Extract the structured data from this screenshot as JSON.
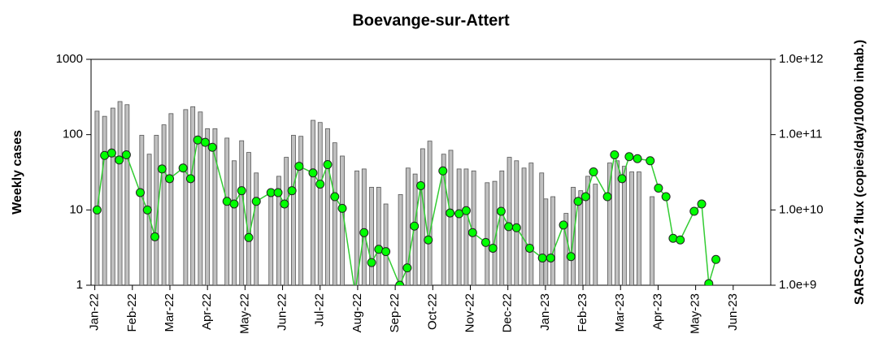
{
  "chart_data": {
    "type": "bar",
    "title": "Boevange-sur-Attert",
    "y_label": "Weekly cases",
    "y2_label": "SARS-CoV-2 flux (copies/day/10000 inhab.)",
    "log_y": true,
    "log_y2": true,
    "xlim": [
      -0.1,
      18
    ],
    "ylim": [
      1,
      1000
    ],
    "y2lim": [
      1000000000,
      1000000000000
    ],
    "xticks": [
      {
        "value": 0,
        "label": "Jan-22"
      },
      {
        "value": 1,
        "label": "Feb-22"
      },
      {
        "value": 2,
        "label": "Mar-22"
      },
      {
        "value": 3,
        "label": "Apr-22"
      },
      {
        "value": 4,
        "label": "May-22"
      },
      {
        "value": 5,
        "label": "Jun-22"
      },
      {
        "value": 6,
        "label": "Jul-22"
      },
      {
        "value": 7,
        "label": "Aug-22"
      },
      {
        "value": 8,
        "label": "Sep-22"
      },
      {
        "value": 9,
        "label": "Oct-22"
      },
      {
        "value": 10,
        "label": "Nov-22"
      },
      {
        "value": 11,
        "label": "Dec-22"
      },
      {
        "value": 12,
        "label": "Jan-23"
      },
      {
        "value": 13,
        "label": "Feb-23"
      },
      {
        "value": 14,
        "label": "Mar-23"
      },
      {
        "value": 15,
        "label": "Apr-23"
      },
      {
        "value": 16,
        "label": "May-23"
      },
      {
        "value": 17,
        "label": "Jun-23"
      }
    ],
    "yticks": [
      1,
      10,
      100,
      1000
    ],
    "y2ticks": [
      {
        "value": 1000000000,
        "label": "1.0e+9"
      },
      {
        "value": 10000000000,
        "label": "1.0e+10"
      },
      {
        "value": 100000000000,
        "label": "1.0e+11"
      },
      {
        "value": 1000000000000,
        "label": "1.0e+12"
      }
    ],
    "series": [
      {
        "type": "bar",
        "color": "#c0c0c0",
        "x": [
          0.06,
          0.26,
          0.48,
          0.67,
          0.86,
          1.25,
          1.45,
          1.64,
          1.84,
          2.03,
          2.42,
          2.61,
          2.81,
          3.0,
          3.2,
          3.52,
          3.71,
          3.91,
          4.1,
          4.3,
          4.69,
          4.9,
          5.1,
          5.29,
          5.49,
          5.81,
          6.0,
          6.2,
          6.39,
          6.59,
          6.98,
          7.17,
          7.37,
          7.56,
          7.75,
          8.14,
          8.34,
          8.53,
          8.73,
          8.92,
          9.29,
          9.48,
          9.7,
          9.89,
          10.09,
          10.45,
          10.65,
          10.84,
          11.04,
          11.23,
          11.43,
          11.62,
          11.9,
          12.01,
          12.2,
          12.55,
          12.74,
          12.94,
          13.13,
          13.33,
          13.71,
          13.91,
          14.1,
          14.3,
          14.49,
          14.84
        ],
        "values": [
          205,
          175,
          225,
          275,
          250,
          98,
          55,
          98,
          135,
          190,
          215,
          235,
          200,
          120,
          120,
          90,
          45,
          83,
          58,
          31,
          18,
          28,
          50,
          98,
          95,
          155,
          145,
          120,
          78,
          52,
          33,
          35,
          20,
          20,
          12,
          16,
          36,
          30,
          65,
          82,
          55,
          62,
          35,
          35,
          33,
          23,
          24,
          33,
          50,
          45,
          36,
          42,
          31,
          14,
          15,
          9,
          20,
          18,
          28,
          22,
          42,
          45,
          38,
          32,
          32,
          15
        ]
      },
      {
        "type": "line",
        "axis": "y2",
        "color": "#33cc33",
        "marker_color": "#00ff00",
        "x": [
          0.06,
          0.26,
          0.45,
          0.65,
          0.84,
          1.21,
          1.4,
          1.6,
          1.79,
          1.99,
          2.35,
          2.55,
          2.74,
          2.94,
          3.13,
          3.52,
          3.71,
          3.91,
          4.1,
          4.3,
          4.69,
          4.88,
          5.05,
          5.25,
          5.44,
          5.81,
          6.0,
          6.2,
          6.39,
          6.59,
          6.93,
          7.17,
          7.37,
          7.56,
          7.75,
          8.12,
          8.32,
          8.51,
          8.68,
          8.88,
          9.27,
          9.46,
          9.7,
          9.89,
          10.06,
          10.41,
          10.6,
          10.82,
          11.02,
          11.23,
          11.58,
          11.92,
          12.14,
          12.48,
          12.68,
          12.87,
          13.07,
          13.28,
          13.65,
          13.84,
          14.04,
          14.23,
          14.45,
          14.79,
          15.01,
          15.21,
          15.4,
          15.59,
          15.96,
          16.16,
          16.35,
          16.54
        ],
        "values": [
          10000000000,
          53000000000,
          57000000000,
          46000000000,
          54000000000,
          17000000000,
          10000000000,
          4400000000,
          35000000000,
          26000000000,
          36000000000,
          26000000000,
          85000000000,
          79000000000,
          68000000000,
          13000000000,
          12000000000,
          18000000000,
          4300000000,
          13000000000,
          17000000000,
          17000000000,
          12000000000,
          18000000000,
          38000000000,
          31000000000,
          22000000000,
          40000000000,
          15000000000,
          10500000000,
          800000000,
          5000000000,
          2000000000,
          3000000000,
          2800000000,
          1000000000,
          1700000000,
          6100000000,
          21000000000,
          4000000000,
          33000000000,
          9100000000,
          8900000000,
          9800000000,
          5000000000,
          3700000000,
          3100000000,
          9600000000,
          6000000000,
          5800000000,
          3100000000,
          2300000000,
          2300000000,
          6300000000,
          2400000000,
          13000000000,
          15000000000,
          32000000000,
          15000000000,
          54000000000,
          26000000000,
          51000000000,
          48000000000,
          45000000000,
          19500000000,
          15000000000,
          4200000000,
          4000000000,
          9600000000,
          12000000000,
          1050000000,
          2200000000
        ]
      }
    ]
  }
}
